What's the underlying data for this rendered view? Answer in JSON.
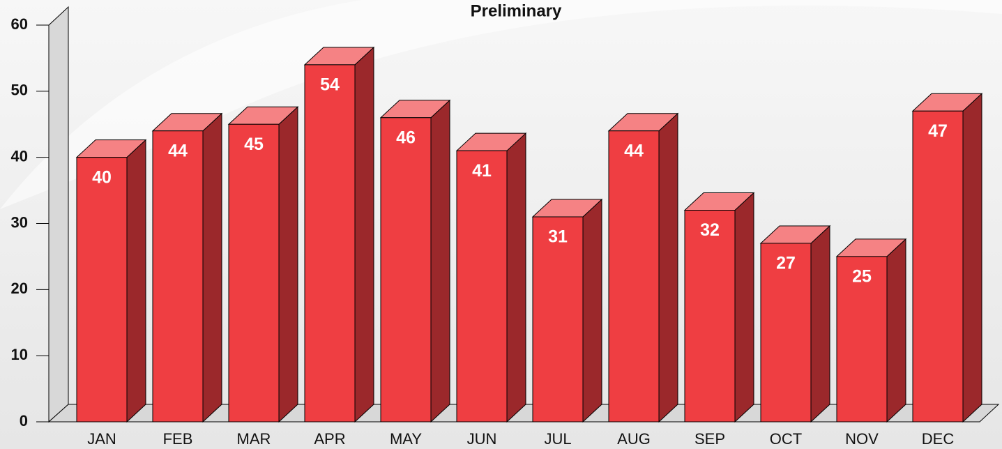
{
  "chart_data": {
    "type": "bar",
    "title": "Preliminary",
    "categories": [
      "JAN",
      "FEB",
      "MAR",
      "APR",
      "MAY",
      "JUN",
      "JUL",
      "AUG",
      "SEP",
      "OCT",
      "NOV",
      "DEC"
    ],
    "values": [
      40,
      44,
      45,
      54,
      46,
      41,
      31,
      44,
      32,
      27,
      25,
      47
    ],
    "color": "#ef3e42",
    "ylim": [
      0,
      60
    ],
    "yticks": [
      0,
      10,
      20,
      30,
      40,
      50,
      60
    ]
  }
}
